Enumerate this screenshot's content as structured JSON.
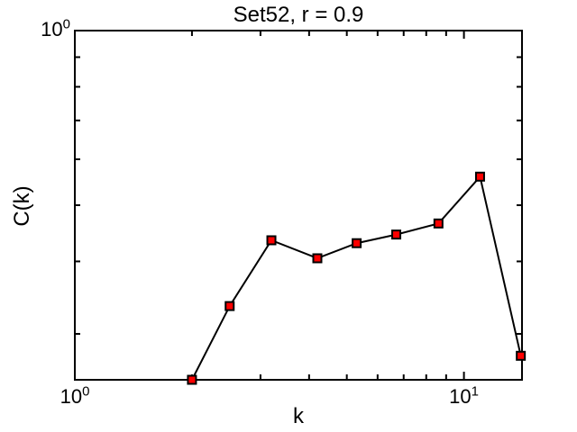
{
  "chart_data": {
    "type": "line",
    "title": "Set52, r = 0.9",
    "xlabel": "k",
    "ylabel": "C(k)",
    "xscale": "log",
    "yscale": "log",
    "xlim": [
      1,
      14.1
    ],
    "ylim": [
      0.25,
      1
    ],
    "x": [
      2.0,
      2.5,
      3.2,
      4.2,
      5.3,
      6.7,
      8.6,
      11.0,
      14.0
    ],
    "y": [
      0.25,
      0.335,
      0.435,
      0.405,
      0.43,
      0.445,
      0.465,
      0.56,
      0.275
    ],
    "x_major_ticks": [
      1,
      10
    ],
    "x_minor_ticks": [
      2,
      3,
      4,
      5,
      6,
      7,
      8,
      9
    ],
    "y_major_ticks": [
      1
    ],
    "y_minor_ticks": [
      0.9,
      0.8,
      0.7,
      0.6,
      0.5,
      0.4,
      0.3
    ],
    "grid": false,
    "legend": "none",
    "line_color": "#000000",
    "marker": "square",
    "marker_fill": "#ff0000",
    "marker_edge": "#000000",
    "background": "#ffffff"
  }
}
